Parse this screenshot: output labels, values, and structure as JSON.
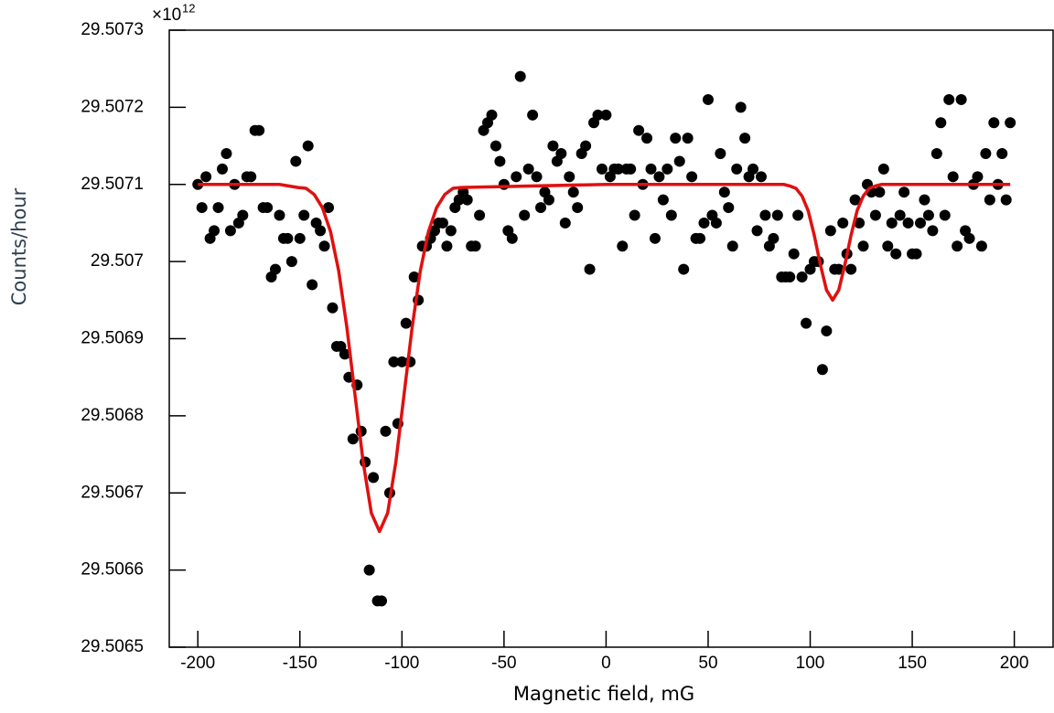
{
  "chart_data": {
    "type": "scatter",
    "xlabel": "Magnetic field, mG",
    "ylabel": "Counts/hour",
    "y_multiplier": {
      "base": "×10",
      "exponent": "12"
    },
    "xlim": [
      -214,
      219
    ],
    "ylim": [
      29.5065,
      29.5073
    ],
    "xticks": [
      -200,
      -150,
      -100,
      -50,
      0,
      50,
      100,
      150,
      200
    ],
    "yticks": [
      29.5065,
      29.5066,
      29.5067,
      29.5068,
      29.5069,
      29.507,
      29.5071,
      29.5072,
      29.5073
    ],
    "color": "#000000",
    "fit_color": "#e01010",
    "x": [
      -200,
      -198,
      -196,
      -194,
      -192,
      -190,
      -188,
      -186,
      -184,
      -182,
      -180,
      -178,
      -176,
      -174,
      -172,
      -170,
      -168,
      -166,
      -164,
      -162,
      -160,
      -158,
      -156,
      -154,
      -152,
      -150,
      -148,
      -146,
      -144,
      -142,
      -140,
      -138,
      -136,
      -134,
      -132,
      -130,
      -128,
      -126,
      -124,
      -122,
      -120,
      -118,
      -116,
      -114,
      -112,
      -110,
      -108,
      -106,
      -104,
      -102,
      -100,
      -98,
      -96,
      -94,
      -92,
      -90,
      -88,
      -86,
      -84,
      -82,
      -80,
      -78,
      -76,
      -74,
      -72,
      -70,
      -68,
      -66,
      -64,
      -62,
      -60,
      -58,
      -56,
      -54,
      -52,
      -50,
      -48,
      -46,
      -44,
      -42,
      -40,
      -38,
      -36,
      -34,
      -32,
      -30,
      -28,
      -26,
      -24,
      -22,
      -20,
      -18,
      -16,
      -14,
      -12,
      -10,
      -8,
      -6,
      -4,
      -2,
      0,
      2,
      4,
      6,
      8,
      10,
      12,
      14,
      16,
      18,
      20,
      22,
      24,
      26,
      28,
      30,
      32,
      34,
      36,
      38,
      40,
      42,
      44,
      46,
      48,
      50,
      52,
      54,
      56,
      58,
      60,
      62,
      64,
      66,
      68,
      70,
      72,
      74,
      76,
      78,
      80,
      82,
      84,
      86,
      88,
      90,
      92,
      94,
      96,
      98,
      100,
      102,
      104,
      106,
      108,
      110,
      112,
      114,
      116,
      118,
      120,
      122,
      124,
      126,
      128,
      130,
      132,
      134,
      136,
      138,
      140,
      142,
      144,
      146,
      148,
      150,
      152,
      154,
      156,
      158,
      160,
      162,
      164,
      166,
      168,
      170,
      172,
      174,
      176,
      178,
      180,
      182,
      184,
      186,
      188,
      190,
      192,
      194,
      196,
      198
    ],
    "values": [
      29.5071,
      29.50707,
      29.50711,
      29.50703,
      29.50704,
      29.50707,
      29.50712,
      29.50714,
      29.50704,
      29.5071,
      29.50705,
      29.50706,
      29.50711,
      29.50711,
      29.50717,
      29.50717,
      29.50707,
      29.50707,
      29.50698,
      29.50699,
      29.50706,
      29.50703,
      29.50703,
      29.507,
      29.50713,
      29.50703,
      29.50706,
      29.50715,
      29.50697,
      29.50705,
      29.50704,
      29.50702,
      29.50707,
      29.50694,
      29.50689,
      29.50689,
      29.50688,
      29.50685,
      29.50677,
      29.50684,
      29.50678,
      29.50674,
      29.5066,
      29.50672,
      29.50656,
      29.50656,
      29.50678,
      29.5067,
      29.50687,
      29.50679,
      29.50687,
      29.50692,
      29.50687,
      29.50698,
      29.50695,
      29.50702,
      29.50702,
      29.50703,
      29.50704,
      29.50705,
      29.50705,
      29.50702,
      29.50704,
      29.50707,
      29.50708,
      29.50709,
      29.50708,
      29.50702,
      29.50702,
      29.50706,
      29.50717,
      29.50718,
      29.50719,
      29.50715,
      29.50713,
      29.5071,
      29.50704,
      29.50703,
      29.50711,
      29.50724,
      29.50706,
      29.50712,
      29.50719,
      29.50711,
      29.50707,
      29.50709,
      29.50708,
      29.50715,
      29.50713,
      29.50714,
      29.50705,
      29.50711,
      29.50709,
      29.50707,
      29.50714,
      29.50715,
      29.50699,
      29.50718,
      29.50719,
      29.50712,
      29.50719,
      29.50711,
      29.50712,
      29.50712,
      29.50702,
      29.50712,
      29.50712,
      29.50706,
      29.50717,
      29.5071,
      29.50716,
      29.50712,
      29.50703,
      29.50711,
      29.50708,
      29.50712,
      29.50706,
      29.50716,
      29.50713,
      29.50699,
      29.50716,
      29.50711,
      29.50703,
      29.50703,
      29.50705,
      29.50721,
      29.50706,
      29.50705,
      29.50714,
      29.50709,
      29.50707,
      29.50702,
      29.50712,
      29.5072,
      29.50716,
      29.50711,
      29.50712,
      29.50704,
      29.50711,
      29.50706,
      29.50702,
      29.50703,
      29.50706,
      29.50698,
      29.50698,
      29.50698,
      29.50701,
      29.50706,
      29.50698,
      29.50692,
      29.50699,
      29.507,
      29.507,
      29.50686,
      29.50691,
      29.50704,
      29.50699,
      29.50699,
      29.50705,
      29.50701,
      29.50699,
      29.50708,
      29.50705,
      29.50702,
      29.5071,
      29.50709,
      29.50706,
      29.50709,
      29.50712,
      29.50702,
      29.50705,
      29.50701,
      29.50706,
      29.50709,
      29.50705,
      29.50701,
      29.50701,
      29.50705,
      29.50708,
      29.50706,
      29.50704,
      29.50714,
      29.50718,
      29.50706,
      29.50721,
      29.50711,
      29.50702,
      29.50721,
      29.50704,
      29.50703,
      29.5071,
      29.50711,
      29.50702,
      29.50714,
      29.50708,
      29.50718,
      29.5071,
      29.50714,
      29.50708,
      29.50718
    ],
    "fit_x": [
      -200,
      -160,
      -151,
      -147,
      -143,
      -139,
      -135,
      -131,
      -127,
      -123,
      -119,
      -115,
      -111,
      -107,
      -103,
      -99,
      -95,
      -91,
      -87,
      -83,
      -79,
      -75,
      -71,
      0,
      80,
      87,
      90,
      93,
      96,
      99,
      102,
      105,
      108,
      111,
      114,
      117,
      120,
      123,
      126,
      129,
      132,
      135,
      198
    ],
    "fit_values": [
      29.5071,
      29.5071,
      29.507096,
      29.507095,
      29.507087,
      29.50707,
      29.507039,
      29.506988,
      29.506915,
      29.506827,
      29.50674,
      29.506674,
      29.50665,
      29.506674,
      29.50674,
      29.506827,
      29.506915,
      29.506988,
      29.507039,
      29.50707,
      29.507087,
      29.507095,
      29.507096,
      29.5071,
      29.5071,
      29.5071,
      29.507098,
      29.507095,
      29.507085,
      29.507066,
      29.507034,
      29.506996,
      29.506963,
      29.50695,
      29.506963,
      29.506996,
      29.507034,
      29.507066,
      29.507085,
      29.507095,
      29.507098,
      29.5071,
      29.5071
    ]
  }
}
